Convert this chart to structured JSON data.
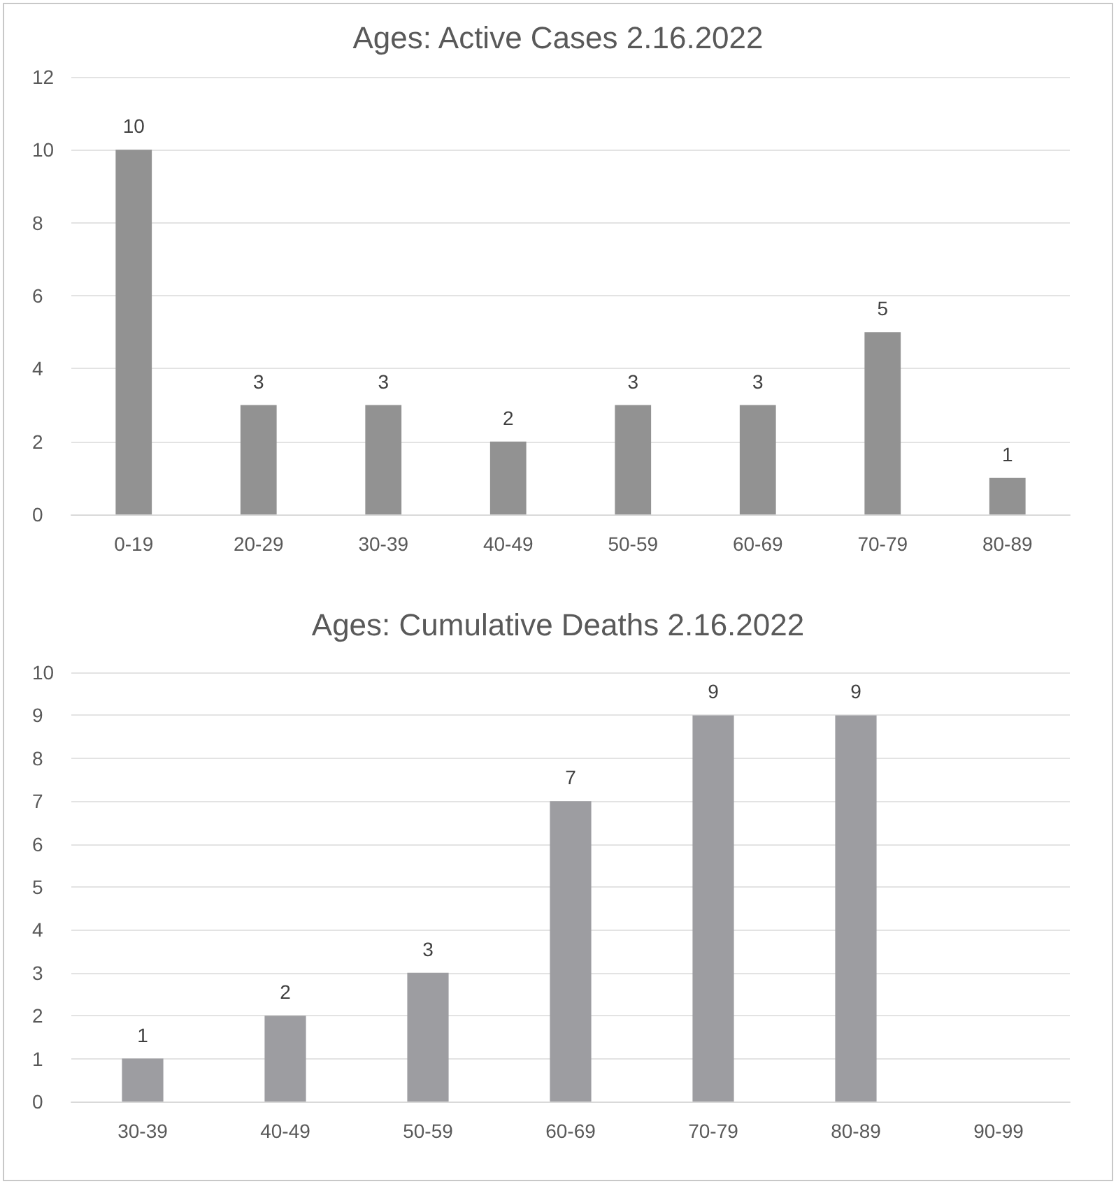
{
  "chart_data": [
    {
      "type": "bar",
      "title": "Ages: Active Cases 2.16.2022",
      "categories": [
        "0-19",
        "20-29",
        "30-39",
        "40-49",
        "50-59",
        "60-69",
        "70-79",
        "80-89"
      ],
      "values": [
        10,
        3,
        3,
        2,
        3,
        3,
        5,
        1
      ],
      "color": "#929292",
      "ylim": [
        0,
        12
      ],
      "yticks": [
        0,
        2,
        4,
        6,
        8,
        10,
        12
      ],
      "grid": "y",
      "data_labels": true
    },
    {
      "type": "bar",
      "title": "Ages: Cumulative Deaths 2.16.2022",
      "categories": [
        "30-39",
        "40-49",
        "50-59",
        "60-69",
        "70-79",
        "80-89",
        "90-99"
      ],
      "values": [
        1,
        2,
        3,
        7,
        9,
        9,
        null
      ],
      "color": "#9d9da1",
      "ylim": [
        0,
        10
      ],
      "yticks": [
        0,
        1,
        2,
        3,
        4,
        5,
        6,
        7,
        8,
        9,
        10
      ],
      "grid": "y",
      "data_labels": true
    }
  ]
}
